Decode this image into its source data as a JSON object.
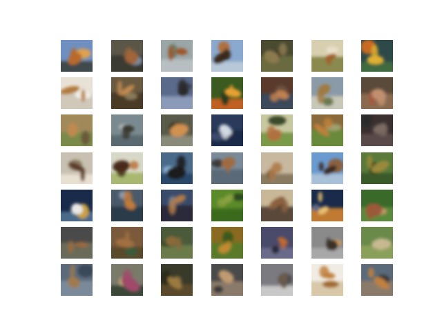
{
  "figure": {
    "grid": "7x7",
    "rows": 7,
    "cols": 7,
    "background": "#ffffff",
    "tiles": [
      [
        {
          "bg": "#6f8fc1",
          "mid": "#3f4a4c",
          "fg": "#b86a2a",
          "accent": "#e0a050"
        },
        {
          "bg": "#5c5648",
          "mid": "#3a3a30",
          "fg": "#a0653a",
          "accent": "#7a8a9a"
        },
        {
          "bg": "#9aa6a8",
          "mid": "#b8bfc2",
          "fg": "#a0552a",
          "accent": "#6f7a62"
        },
        {
          "bg": "#8aa9cf",
          "mid": "#b7c8d8",
          "fg": "#3a2a1c",
          "accent": "#b07040"
        },
        {
          "bg": "#4a4a30",
          "mid": "#6a6a40",
          "fg": "#8c7a50",
          "accent": "#3a3622"
        },
        {
          "bg": "#d8cfb0",
          "mid": "#8a8a50",
          "fg": "#a0602a",
          "accent": "#e8e0c8"
        },
        {
          "bg": "#2e4a48",
          "mid": "#3f6a40",
          "fg": "#e0b030",
          "accent": "#c86a20"
        }
      ],
      [
        {
          "bg": "#e8e2d6",
          "mid": "#d0c8b8",
          "fg": "#b07a3a",
          "accent": "#f4f0ea"
        },
        {
          "bg": "#6a5a40",
          "mid": "#4a3a28",
          "fg": "#c08a50",
          "accent": "#8a7a5a"
        },
        {
          "bg": "#5a6a8a",
          "mid": "#8a9ab8",
          "fg": "#2a2a2a",
          "accent": "#3a4050"
        },
        {
          "bg": "#3a5a20",
          "mid": "#c06020",
          "fg": "#e8a030",
          "accent": "#2a3a1a"
        },
        {
          "bg": "#5a3a2a",
          "mid": "#3a4a5a",
          "fg": "#c08050",
          "accent": "#6a5040"
        },
        {
          "bg": "#8a9aa8",
          "mid": "#c8c8b8",
          "fg": "#a07a40",
          "accent": "#6a7a50"
        },
        {
          "bg": "#5a4a3a",
          "mid": "#8a6a50",
          "fg": "#c09070",
          "accent": "#a05a40"
        }
      ],
      [
        {
          "bg": "#a08a5a",
          "mid": "#7a8a4a",
          "fg": "#c08a50",
          "accent": "#6a5a3a"
        },
        {
          "bg": "#7a8a90",
          "mid": "#5a6a70",
          "fg": "#3a3a30",
          "accent": "#c0c8c8"
        },
        {
          "bg": "#5a5a4a",
          "mid": "#8a8a7a",
          "fg": "#d09050",
          "accent": "#3a3a2a"
        },
        {
          "bg": "#2a3a5a",
          "mid": "#1a2a4a",
          "fg": "#d0d8e0",
          "accent": "#3a4a6a"
        },
        {
          "bg": "#c8c8a0",
          "mid": "#7a9a4a",
          "fg": "#b07040",
          "accent": "#3a4a2a"
        },
        {
          "bg": "#8a6a3a",
          "mid": "#6a8a3a",
          "fg": "#c0803a",
          "accent": "#a0a070"
        },
        {
          "bg": "#3a3030",
          "mid": "#5a4a4a",
          "fg": "#7a6a60",
          "accent": "#2a2a2a"
        }
      ],
      [
        {
          "bg": "#c8c0b0",
          "mid": "#e8e0d0",
          "fg": "#5a3a2a",
          "accent": "#8a7a60"
        },
        {
          "bg": "#d8d8c8",
          "mid": "#a8b870",
          "fg": "#4a2a1a",
          "accent": "#c08050"
        },
        {
          "bg": "#4a6a8a",
          "mid": "#2a4a6a",
          "fg": "#1a1a1a",
          "accent": "#8ab0d0"
        },
        {
          "bg": "#7a8a98",
          "mid": "#5a6a78",
          "fg": "#a06a40",
          "accent": "#3a3a3a"
        },
        {
          "bg": "#c8b8a0",
          "mid": "#8a7a60",
          "fg": "#b08050",
          "accent": "#4a3a2a"
        },
        {
          "bg": "#6a9ad0",
          "mid": "#a8c0d8",
          "fg": "#3a2a20",
          "accent": "#8a6040"
        },
        {
          "bg": "#5a7a3a",
          "mid": "#3a5a2a",
          "fg": "#9a8a3a",
          "accent": "#2a3a1a"
        }
      ],
      [
        {
          "bg": "#1a2a4a",
          "mid": "#4a6a8a",
          "fg": "#e8e8e8",
          "accent": "#c8a040"
        },
        {
          "bg": "#4a5a6a",
          "mid": "#2a3a4a",
          "fg": "#c07a3a",
          "accent": "#8a9aa8"
        },
        {
          "bg": "#3a4a6a",
          "mid": "#2a2a3a",
          "fg": "#b07a4a",
          "accent": "#6a7a8a"
        },
        {
          "bg": "#5a8a2a",
          "mid": "#3a6a1a",
          "fg": "#8aa040",
          "accent": "#2a4a1a"
        },
        {
          "bg": "#c8b898",
          "mid": "#5a4a3a",
          "fg": "#8a6040",
          "accent": "#3a2a1a"
        },
        {
          "bg": "#1a2a4a",
          "mid": "#c07a30",
          "fg": "#e8c070",
          "accent": "#5a6a8a"
        },
        {
          "bg": "#3a6a2a",
          "mid": "#5a8a3a",
          "fg": "#9a5a3a",
          "accent": "#c89a6a"
        }
      ],
      [
        {
          "bg": "#4a4a4a",
          "mid": "#6a6a5a",
          "fg": "#9a6a40",
          "accent": "#3a4a3a"
        },
        {
          "bg": "#7a5a3a",
          "mid": "#5a4a2a",
          "fg": "#a07040",
          "accent": "#3a5a3a"
        },
        {
          "bg": "#4a5a3a",
          "mid": "#6a7a4a",
          "fg": "#8a6a3a",
          "accent": "#3a4a2a"
        },
        {
          "bg": "#8a6a20",
          "mid": "#5a7a2a",
          "fg": "#c08a30",
          "accent": "#3a5a1a"
        },
        {
          "bg": "#4a4a6a",
          "mid": "#6a6a8a",
          "fg": "#c06a30",
          "accent": "#2a2a3a"
        },
        {
          "bg": "#8a8a8a",
          "mid": "#a8a8a8",
          "fg": "#3a3028",
          "accent": "#c89a60"
        },
        {
          "bg": "#6a8a4a",
          "mid": "#8aa05a",
          "fg": "#c8b890",
          "accent": "#4a6a3a"
        }
      ],
      [
        {
          "bg": "#5a6a7a",
          "mid": "#7a8a9a",
          "fg": "#a07a50",
          "accent": "#3a4a5a"
        },
        {
          "bg": "#7a7a6a",
          "mid": "#3a4a3a",
          "fg": "#a04a6a",
          "accent": "#c0b070"
        },
        {
          "bg": "#3a3a2a",
          "mid": "#5a4a2a",
          "fg": "#9a7a40",
          "accent": "#2a2a1a"
        },
        {
          "bg": "#4a4a4a",
          "mid": "#8a7a6a",
          "fg": "#c09a70",
          "accent": "#3a3a3a"
        },
        {
          "bg": "#7a7a80",
          "mid": "#c8c8c8",
          "fg": "#6a5a4a",
          "accent": "#4a4a50"
        },
        {
          "bg": "#f0ece4",
          "mid": "#d8c8a8",
          "fg": "#c08040",
          "accent": "#a06a30"
        },
        {
          "bg": "#5a6a7a",
          "mid": "#8a7a6a",
          "fg": "#c08040",
          "accent": "#3a3a3a"
        }
      ]
    ]
  }
}
